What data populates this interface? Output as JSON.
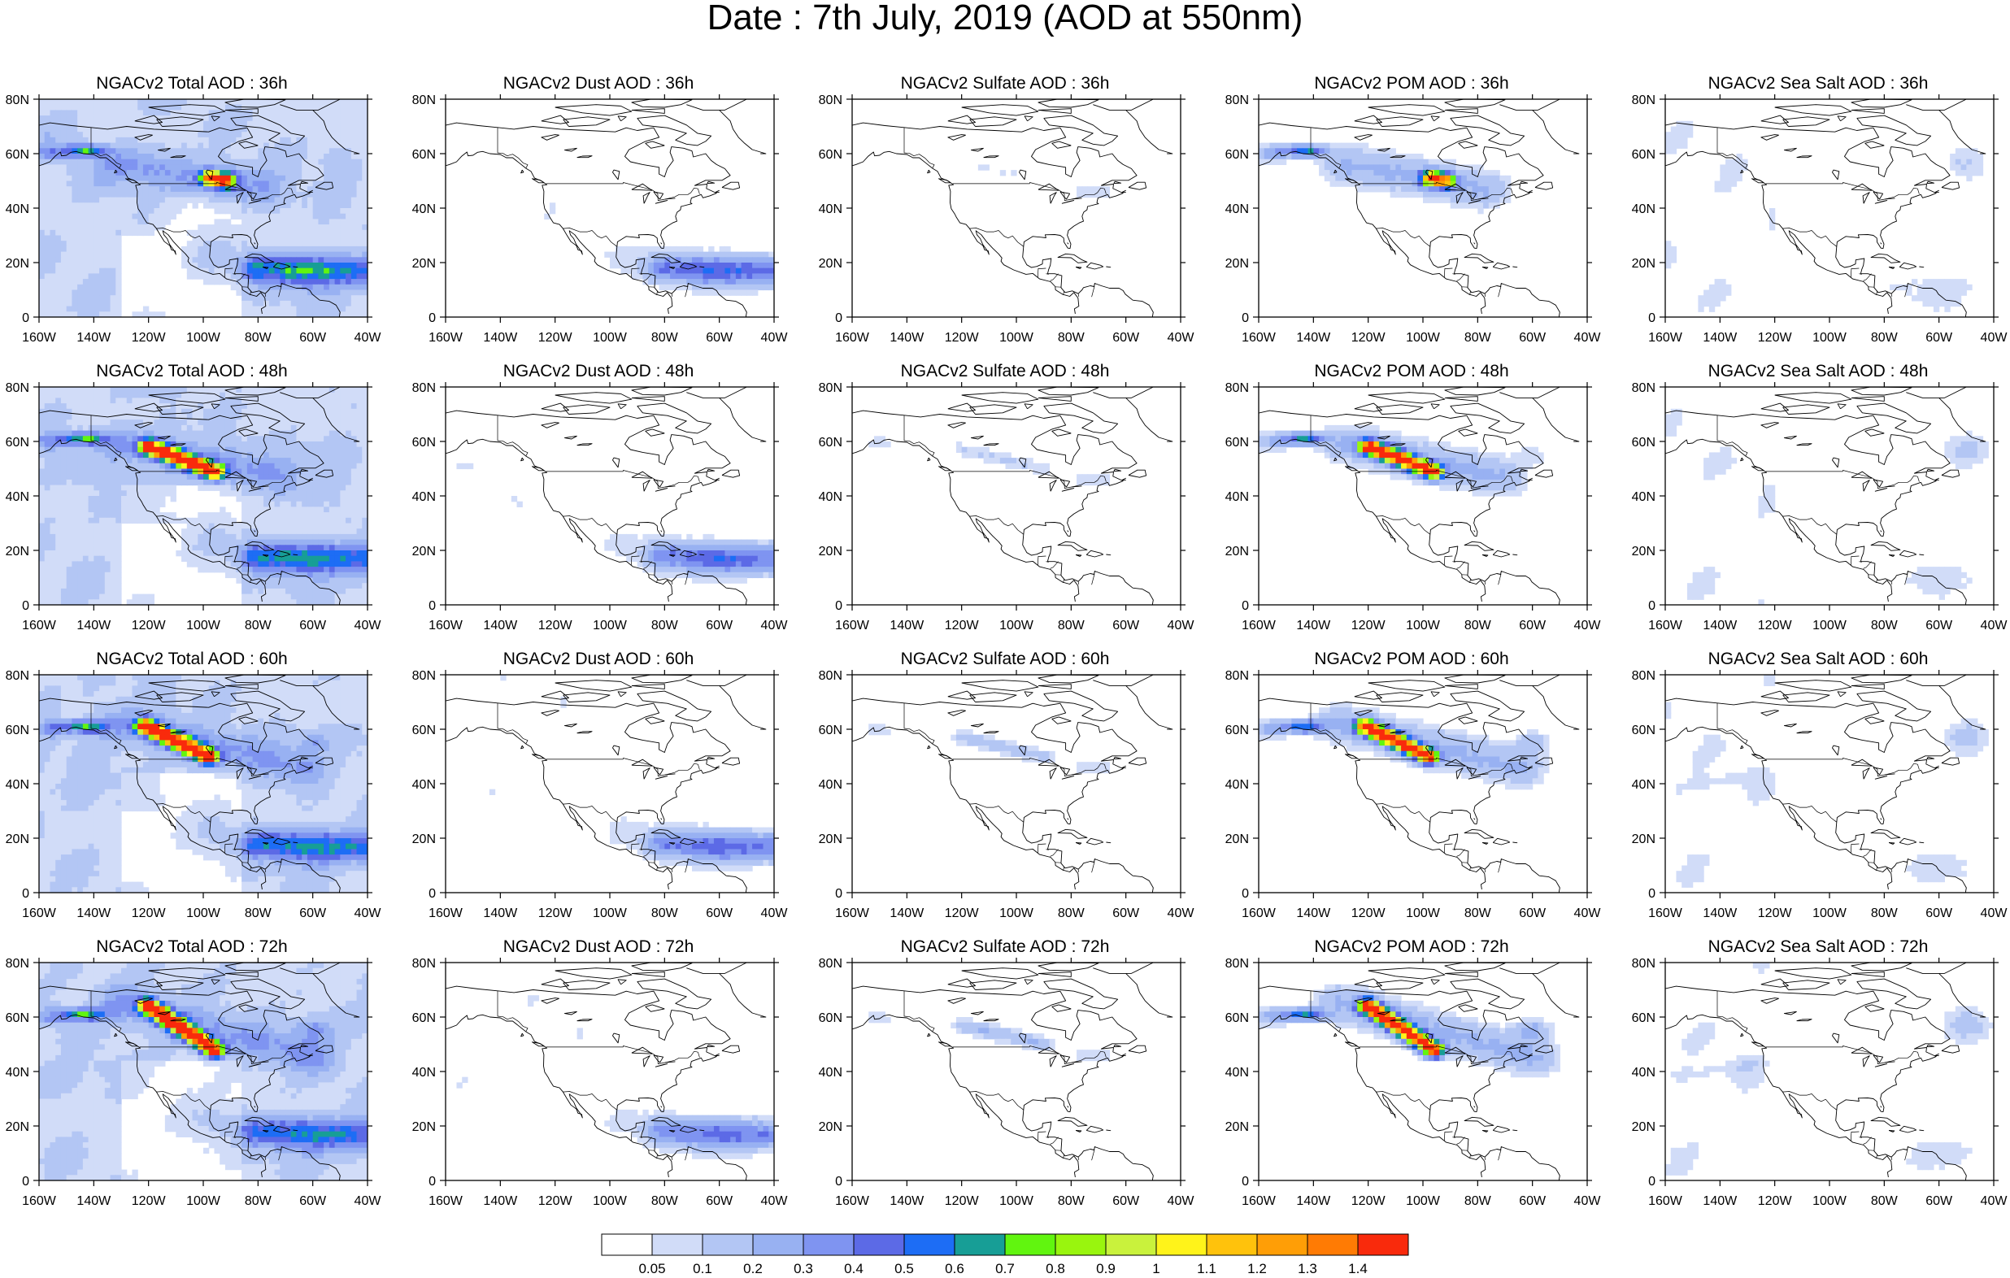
{
  "title": "Date : 7th July, 2019 (AOD at 550nm)",
  "colors": {
    "levels": [
      "#ffffff",
      "#d1dcf8",
      "#b3c6f4",
      "#98b1f2",
      "#7f94f1",
      "#5c6ae6",
      "#1d6df5",
      "#179e96",
      "#61f50f",
      "#99f50e",
      "#c9f23c",
      "#fff31a",
      "#ffc20c",
      "#ff9e06",
      "#ff7b04",
      "#f92a0c"
    ],
    "coast": "#000000"
  },
  "axes": {
    "x_ticks": [
      "160W",
      "140W",
      "120W",
      "100W",
      "80W",
      "60W",
      "40W"
    ],
    "y_ticks": [
      "80N",
      "60N",
      "40N",
      "20N",
      "0"
    ]
  },
  "colorbar": {
    "labels": [
      "0.05",
      "0.1",
      "0.2",
      "0.3",
      "0.4",
      "0.5",
      "0.6",
      "0.7",
      "0.8",
      "0.9",
      "1",
      "1.1",
      "1.2",
      "1.3",
      "1.4"
    ]
  },
  "chart_data": {
    "type": "heatmap",
    "title": "Date : 7th July, 2019 (AOD at 550nm)",
    "xlim": [
      -160,
      -40
    ],
    "ylim": [
      0,
      80
    ],
    "levels": [
      0.05,
      0.1,
      0.2,
      0.3,
      0.4,
      0.5,
      0.6,
      0.7,
      0.8,
      0.9,
      1.0,
      1.1,
      1.2,
      1.3,
      1.4
    ],
    "columns": [
      "Total",
      "Dust",
      "Sulfate",
      "POM",
      "Sea Salt"
    ],
    "rows": [
      "36h",
      "48h",
      "60h",
      "72h"
    ],
    "panels": [
      [
        {
          "title": "NGACv2 Total AOD : 36h",
          "var": "total",
          "t": 0
        },
        {
          "title": "NGACv2 Dust AOD : 36h",
          "var": "dust",
          "t": 0
        },
        {
          "title": "NGACv2 Sulfate AOD : 36h",
          "var": "sulfate",
          "t": 0
        },
        {
          "title": "NGACv2 POM AOD : 36h",
          "var": "pom",
          "t": 0
        },
        {
          "title": "NGACv2 Sea Salt AOD : 36h",
          "var": "seasalt",
          "t": 0
        }
      ],
      [
        {
          "title": "NGACv2 Total AOD : 48h",
          "var": "total",
          "t": 1
        },
        {
          "title": "NGACv2 Dust AOD : 48h",
          "var": "dust",
          "t": 1
        },
        {
          "title": "NGACv2 Sulfate AOD : 48h",
          "var": "sulfate",
          "t": 1
        },
        {
          "title": "NGACv2 POM AOD : 48h",
          "var": "pom",
          "t": 1
        },
        {
          "title": "NGACv2 Sea Salt AOD : 48h",
          "var": "seasalt",
          "t": 1
        }
      ],
      [
        {
          "title": "NGACv2 Total AOD : 60h",
          "var": "total",
          "t": 2
        },
        {
          "title": "NGACv2 Dust AOD : 60h",
          "var": "dust",
          "t": 2
        },
        {
          "title": "NGACv2 Sulfate AOD : 60h",
          "var": "sulfate",
          "t": 2
        },
        {
          "title": "NGACv2 POM AOD : 60h",
          "var": "pom",
          "t": 2
        },
        {
          "title": "NGACv2 Sea Salt AOD : 60h",
          "var": "seasalt",
          "t": 2
        }
      ],
      [
        {
          "title": "NGACv2 Total AOD : 72h",
          "var": "total",
          "t": 3
        },
        {
          "title": "NGACv2 Dust AOD : 72h",
          "var": "dust",
          "t": 3
        },
        {
          "title": "NGACv2 Sulfate AOD : 72h",
          "var": "sulfate",
          "t": 3
        },
        {
          "title": "NGACv2 POM AOD : 72h",
          "var": "pom",
          "t": 3
        },
        {
          "title": "NGACv2 Sea Salt  AOD : 72h",
          "var": "seasalt",
          "t": 3
        }
      ]
    ]
  }
}
